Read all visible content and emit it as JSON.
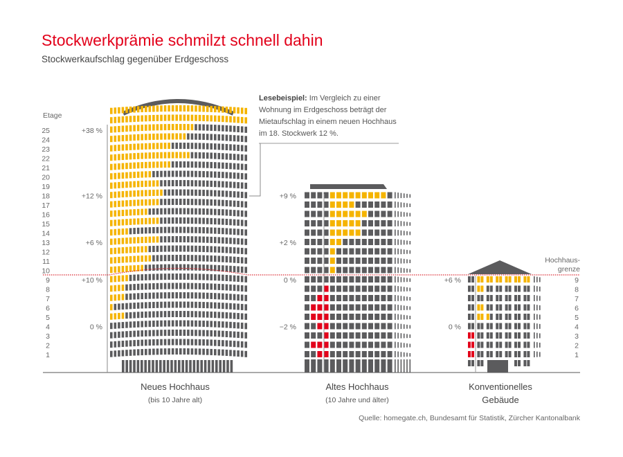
{
  "title": "Stockwerkprämie schmilzt schnell dahin",
  "subtitle": "Stockwerkaufschlag gegenüber Erdgeschoss",
  "callout": {
    "bold": "Lesebeispiel:",
    "text": " Im Vergleich zu einer Wohnung im Erdgeschoss beträgt der Mietaufschlag in einem neuen Hochhaus im 18. Stockwerk 12 %."
  },
  "source": "Quelle: homegate.ch, Bundesamt für Statistik, Zürcher Kantonalbank",
  "colors": {
    "title": "#e2001a",
    "window": "#5b5b5d",
    "premium": "#f5b400",
    "discount": "#e3001b",
    "limit_line": "#d9262f"
  },
  "chart_data": {
    "type": "pictogram",
    "floor_axis_label": "Etage",
    "limit_label": [
      "Hochhaus-",
      "grenze"
    ],
    "limit_floor": 9.5,
    "buildings": [
      {
        "name": "Neues Hochhaus",
        "sub": "(bis 10 Jahre alt)",
        "floors": 25,
        "columns": 36,
        "labels": [
          {
            "floor": 25,
            "text": "+38 %"
          },
          {
            "floor": 18,
            "text": "+12 %"
          },
          {
            "floor": 13,
            "text": "+6 %"
          },
          {
            "floor": 9,
            "text": "+10 %"
          },
          {
            "floor": 4,
            "text": "0 %"
          }
        ],
        "premium_windows_by_floor": [
          0,
          0,
          0,
          0,
          4,
          1,
          4,
          4,
          5,
          9,
          11,
          10,
          13,
          5,
          13,
          10,
          13,
          14,
          13,
          11,
          16,
          21,
          16,
          20,
          22
        ]
      },
      {
        "name": "Altes Hochhaus",
        "sub": "(10 Jahre und älter)",
        "floors": 18,
        "columns": 14,
        "labels": [
          {
            "floor": 18,
            "text": "+9 %"
          },
          {
            "floor": 13,
            "text": "+2 %"
          },
          {
            "floor": 9,
            "text": "0 %"
          },
          {
            "floor": 4,
            "text": "−2 %"
          }
        ],
        "premium_windows_by_floor": [
          0,
          0,
          0,
          0,
          0,
          0,
          0,
          0,
          0,
          1,
          1,
          1,
          2,
          5,
          5,
          6,
          4,
          9
        ],
        "discount_windows_by_floor": [
          2,
          3,
          1,
          2,
          3,
          3,
          2,
          1,
          0,
          0,
          0,
          0,
          0,
          0,
          0,
          0,
          0,
          0
        ]
      },
      {
        "name": "Konventionelles",
        "name2": "Gebäude",
        "floors": 9,
        "columns": 7,
        "labels": [
          {
            "floor": 9,
            "text": "+6 %"
          },
          {
            "floor": 4,
            "text": "0 %"
          }
        ],
        "premium_pairs_by_floor": [
          0,
          0,
          0,
          0,
          1.5,
          1,
          0,
          1,
          6
        ],
        "discount_pairs_by_floor": [
          1,
          1,
          1,
          0,
          0,
          0,
          0,
          0,
          0
        ]
      }
    ]
  }
}
